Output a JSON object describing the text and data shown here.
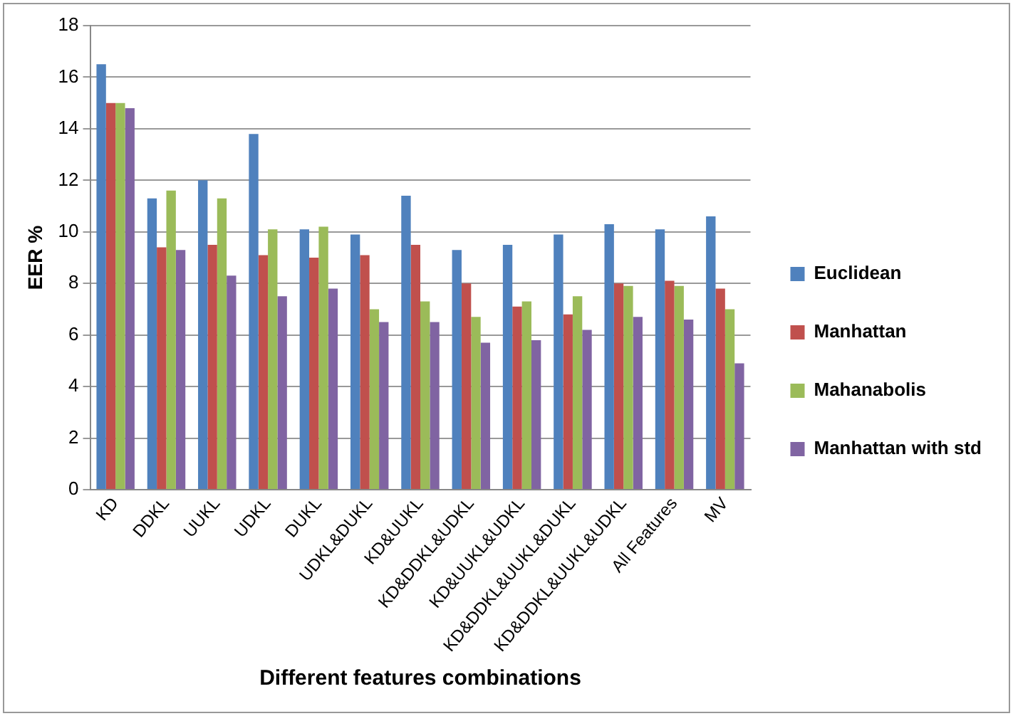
{
  "chart_data": {
    "type": "bar",
    "xlabel": "Different features combinations",
    "ylabel": "EER %",
    "categories": [
      "KD",
      "DDKL",
      "UUKL",
      "UDKL",
      "DUKL",
      "UDKL&DUKL",
      "KD&UUKL",
      "KD&DDKL&UDKL",
      "KD&UUKL&UDKL",
      "KD&DDKL&UUKL&DUKL",
      "KD&DDKL&UUKL&UDKL",
      "All Features",
      "MV"
    ],
    "series": [
      {
        "name": "Euclidean",
        "color": "#4f81bd",
        "values": [
          16.5,
          11.3,
          12,
          13.8,
          10.1,
          9.9,
          11.4,
          9.3,
          9.5,
          9.9,
          10.3,
          10.1,
          10.6
        ]
      },
      {
        "name": "Manhattan",
        "color": "#c0504d",
        "values": [
          15,
          9.4,
          9.5,
          9.1,
          9.0,
          9.1,
          9.5,
          8.0,
          7.1,
          6.8,
          8.0,
          8.1,
          7.8
        ]
      },
      {
        "name": "Mahanabolis",
        "color": "#9bbb59",
        "values": [
          15,
          11.6,
          11.3,
          10.1,
          10.2,
          7.0,
          7.3,
          6.7,
          7.3,
          7.5,
          7.9,
          7.9,
          7.0
        ]
      },
      {
        "name": "Manhattan with std",
        "color": "#8064a2",
        "values": [
          14.8,
          9.3,
          8.3,
          7.5,
          7.8,
          6.5,
          6.5,
          5.7,
          5.8,
          6.2,
          6.7,
          6.6,
          4.9
        ]
      }
    ],
    "ylim": [
      0,
      18
    ],
    "yticks": [
      0,
      2,
      4,
      6,
      8,
      10,
      12,
      14,
      16,
      18
    ],
    "grid": "y",
    "legend": "right"
  }
}
